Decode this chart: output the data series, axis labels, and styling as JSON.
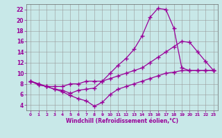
{
  "xlabel": "Windchill (Refroidissement éolien,°C)",
  "background_color": "#c8e8e8",
  "line_color": "#990099",
  "xlim": [
    -0.5,
    23.5
  ],
  "ylim": [
    3,
    23
  ],
  "xticks": [
    0,
    1,
    2,
    3,
    4,
    5,
    6,
    7,
    8,
    9,
    10,
    11,
    12,
    13,
    14,
    15,
    16,
    17,
    18,
    19,
    20,
    21,
    22,
    23
  ],
  "yticks": [
    4,
    6,
    8,
    10,
    12,
    14,
    16,
    18,
    20,
    22
  ],
  "grid_color": "#999999",
  "line1_x": [
    0,
    1,
    2,
    3,
    4,
    5,
    6,
    7,
    8,
    9,
    10,
    11,
    12,
    13,
    14,
    15,
    16,
    17,
    18,
    19,
    20,
    21,
    22,
    23
  ],
  "line1_y": [
    8.5,
    8.0,
    7.5,
    7.0,
    6.5,
    5.8,
    5.2,
    4.8,
    3.8,
    4.5,
    6.0,
    7.0,
    7.5,
    8.0,
    8.5,
    9.0,
    9.5,
    10.0,
    10.2,
    10.5,
    10.5,
    10.5,
    10.5,
    10.5
  ],
  "line2_x": [
    0,
    1,
    2,
    3,
    4,
    5,
    6,
    7,
    8,
    9,
    10,
    11,
    12,
    13,
    14,
    15,
    16,
    17,
    18,
    19,
    20,
    21,
    22,
    23
  ],
  "line2_y": [
    8.5,
    8.0,
    7.5,
    7.5,
    7.5,
    8.0,
    8.0,
    8.5,
    8.5,
    8.5,
    9.0,
    9.5,
    10.0,
    10.5,
    11.0,
    12.0,
    13.0,
    14.0,
    15.0,
    16.0,
    15.8,
    14.0,
    12.2,
    10.5
  ],
  "line3_x": [
    0,
    1,
    2,
    3,
    4,
    5,
    6,
    7,
    8,
    9,
    10,
    11,
    12,
    13,
    14,
    15,
    16,
    17,
    18,
    19,
    20,
    21,
    22,
    23
  ],
  "line3_y": [
    8.5,
    7.8,
    7.5,
    7.0,
    6.8,
    6.2,
    6.8,
    7.0,
    7.2,
    8.5,
    10.0,
    11.5,
    12.8,
    14.5,
    17.0,
    20.5,
    22.2,
    22.0,
    18.5,
    11.0,
    10.5,
    10.5,
    10.5,
    10.5
  ],
  "marker": "+",
  "markersize": 4,
  "markeredgewidth": 1.0,
  "linewidth": 0.9
}
